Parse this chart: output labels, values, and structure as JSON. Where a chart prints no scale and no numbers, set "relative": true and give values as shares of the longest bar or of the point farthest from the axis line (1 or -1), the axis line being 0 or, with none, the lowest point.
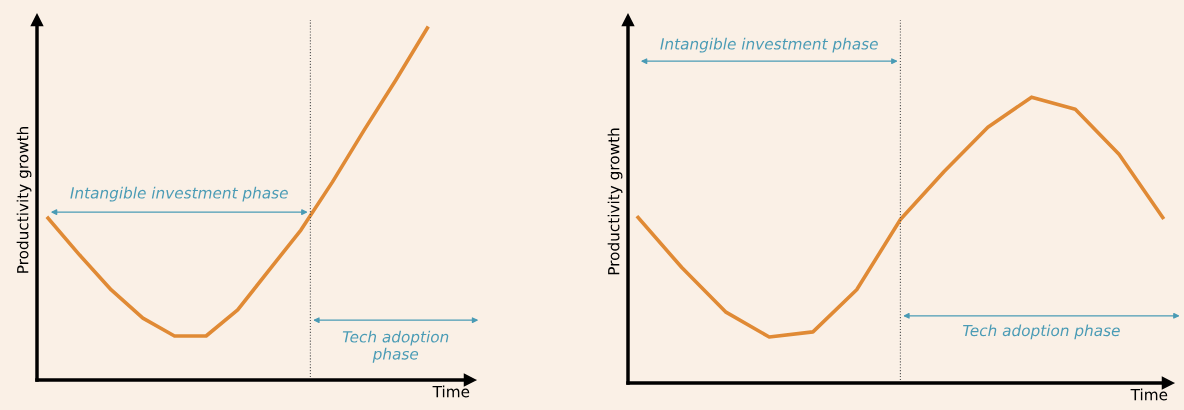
{
  "chart_data": [
    {
      "type": "line",
      "relative": true,
      "xlabel": "Time",
      "ylabel": "Productivity growth",
      "categories": [
        null,
        null,
        null,
        null,
        null,
        null,
        null,
        null,
        null,
        null,
        null,
        null,
        null
      ],
      "series": [
        {
          "color": "#e08a35",
          "values": [
            0.46,
            0.355,
            0.256,
            0.176,
            0.125,
            0.125,
            0.199,
            0.313,
            0.426,
            0.563,
            0.71,
            0.852,
            1
          ]
        }
      ],
      "annotations": [
        "Intangible investment phase",
        "Tech adoption\nphase"
      ],
      "grid": false,
      "legend": false,
      "tick_labels": false,
      "marker": "none",
      "line_style": "solid"
    },
    {
      "type": "line",
      "relative": true,
      "xlabel": "Time",
      "ylabel": "Productivity growth",
      "categories": [
        null,
        null,
        null,
        null,
        null,
        null,
        null,
        null,
        null,
        null,
        null,
        null,
        null
      ],
      "series": [
        {
          "color": "#e08a35",
          "values": [
            0.579,
            0.404,
            0.249,
            0.161,
            0.179,
            0.326,
            0.572,
            0.74,
            0.895,
            1,
            0.958,
            0.8,
            0.579
          ]
        }
      ],
      "annotations": [
        "Intangible investment phase",
        "Tech adoption phase"
      ],
      "grid": false,
      "legend": false,
      "tick_labels": false,
      "marker": "none",
      "line_style": "solid"
    }
  ]
}
